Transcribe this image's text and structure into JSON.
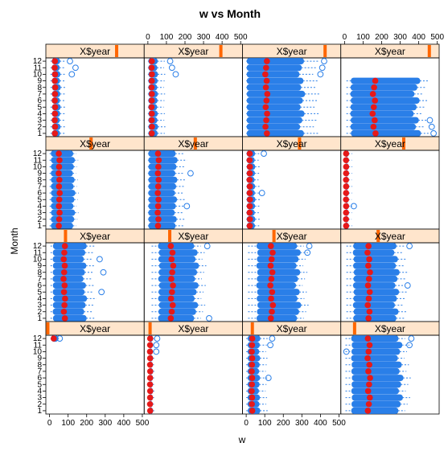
{
  "chart_data": {
    "type": "boxplot",
    "title": "w vs Month",
    "xlabel": "w",
    "ylabel": "Month",
    "x_ticks": [
      0,
      100,
      200,
      300,
      400,
      500
    ],
    "xlim": [
      -20,
      510
    ],
    "y_ticks": [
      1,
      2,
      3,
      4,
      5,
      6,
      7,
      8,
      9,
      10,
      11,
      12
    ],
    "ylim": [
      0.5,
      12.5
    ],
    "layout": {
      "columns": 4,
      "rows": 4
    },
    "strip_label": "X$year",
    "colors": {
      "strip_bg": "#ffe5cc",
      "strip_marker": "#ff6600",
      "box_fill": "#2a7fe8",
      "whisker": "#2a7fe8",
      "outlier": "#2a7fe8",
      "median_dot": "#e61919",
      "axis": "#000000"
    },
    "panels": [
      {
        "row": 1,
        "col": 1,
        "year_marker": 0.72,
        "months": [
          1,
          2,
          3,
          4,
          5,
          6,
          7,
          8,
          9,
          10,
          11,
          12
        ],
        "box": {
          "q1": 15,
          "q3": 55,
          "whisker_low": 5,
          "whisker_high": 85
        },
        "outliers": [
          [
            10,
            120
          ],
          [
            11,
            140
          ],
          [
            12,
            110
          ]
        ]
      },
      {
        "row": 1,
        "col": 2,
        "year_marker": 0.78,
        "months": [
          1,
          2,
          3,
          4,
          5,
          6,
          7,
          8,
          9,
          10,
          11,
          12
        ],
        "box": {
          "q1": 5,
          "q3": 50,
          "whisker_low": 0,
          "whisker_high": 90
        },
        "outliers": [
          [
            10,
            150
          ],
          [
            11,
            130
          ],
          [
            12,
            120
          ]
        ]
      },
      {
        "row": 1,
        "col": 3,
        "year_marker": 0.84,
        "months": [
          1,
          2,
          3,
          4,
          5,
          6,
          7,
          8,
          9,
          10,
          11,
          12
        ],
        "box": {
          "q1": 5,
          "q3": 300,
          "whisker_low": 0,
          "whisker_high": 380
        },
        "outliers": [
          [
            12,
            420
          ],
          [
            11,
            410
          ],
          [
            10,
            400
          ]
        ]
      },
      {
        "row": 1,
        "col": 4,
        "year_marker": 0.9,
        "months": [
          1,
          2,
          3,
          4,
          5,
          6,
          7,
          8,
          9
        ],
        "box": {
          "q1": 35,
          "q3": 390,
          "whisker_low": 10,
          "whisker_high": 440
        },
        "outliers": [
          [
            1,
            480
          ],
          [
            2,
            470
          ],
          [
            3,
            460
          ]
        ]
      },
      {
        "row": 2,
        "col": 1,
        "year_marker": 0.46,
        "months": [
          1,
          2,
          3,
          4,
          5,
          6,
          7,
          8,
          9,
          10,
          11,
          12
        ],
        "box": {
          "q1": 10,
          "q3": 130,
          "whisker_low": 0,
          "whisker_high": 150
        },
        "outliers": [
          [
            12,
            110
          ],
          [
            11,
            100
          ],
          [
            10,
            95
          ]
        ]
      },
      {
        "row": 2,
        "col": 2,
        "year_marker": 0.52,
        "months": [
          1,
          2,
          3,
          4,
          5,
          6,
          7,
          8,
          9,
          10,
          11,
          12
        ],
        "box": {
          "q1": 5,
          "q3": 150,
          "whisker_low": 0,
          "whisker_high": 200
        },
        "outliers": [
          [
            9,
            230
          ],
          [
            4,
            210
          ]
        ]
      },
      {
        "row": 2,
        "col": 3,
        "year_marker": 0.58,
        "months": [
          1,
          2,
          3,
          4,
          5,
          6,
          7,
          8,
          9,
          10,
          11,
          12
        ],
        "box": {
          "q1": 5,
          "q3": 45,
          "whisker_low": 0,
          "whisker_high": 70
        },
        "outliers": [
          [
            12,
            95
          ],
          [
            6,
            85
          ]
        ]
      },
      {
        "row": 2,
        "col": 4,
        "year_marker": 0.64,
        "months": [
          1,
          2,
          3,
          4,
          5,
          6,
          7,
          8,
          9,
          10,
          11,
          12
        ],
        "box": {
          "q1": 2,
          "q3": 20,
          "whisker_low": 0,
          "whisker_high": 40
        },
        "outliers": [
          [
            4,
            50
          ]
        ]
      },
      {
        "row": 3,
        "col": 1,
        "year_marker": 0.2,
        "months": [
          1,
          2,
          3,
          4,
          5,
          6,
          7,
          8,
          9,
          10,
          11,
          12
        ],
        "box": {
          "q1": 20,
          "q3": 190,
          "whisker_low": 5,
          "whisker_high": 240
        },
        "outliers": [
          [
            10,
            270
          ],
          [
            8,
            290
          ],
          [
            5,
            280
          ]
        ]
      },
      {
        "row": 3,
        "col": 2,
        "year_marker": 0.26,
        "months": [
          1,
          2,
          3,
          4,
          5,
          6,
          7,
          8,
          9,
          10,
          11,
          12
        ],
        "box": {
          "q1": 60,
          "q3": 260,
          "whisker_low": 20,
          "whisker_high": 300
        },
        "outliers": [
          [
            12,
            320
          ],
          [
            1,
            330
          ]
        ]
      },
      {
        "row": 3,
        "col": 3,
        "year_marker": 0.32,
        "months": [
          1,
          2,
          3,
          4,
          5,
          6,
          7,
          8,
          9,
          10,
          11,
          12
        ],
        "box": {
          "q1": 60,
          "q3": 280,
          "whisker_low": 10,
          "whisker_high": 320
        },
        "outliers": [
          [
            12,
            340
          ],
          [
            11,
            330
          ]
        ]
      },
      {
        "row": 3,
        "col": 4,
        "year_marker": 0.38,
        "months": [
          1,
          2,
          3,
          4,
          5,
          6,
          7,
          8,
          9,
          10,
          11,
          12
        ],
        "box": {
          "q1": 50,
          "q3": 280,
          "whisker_low": 10,
          "whisker_high": 330
        },
        "outliers": [
          [
            12,
            350
          ],
          [
            6,
            340
          ]
        ]
      },
      {
        "row": 4,
        "col": 1,
        "year_marker": 0.02,
        "months": [
          12
        ],
        "box": {
          "q1": 10,
          "q3": 45,
          "whisker_low": 5,
          "whisker_high": 50
        },
        "outliers": [
          [
            12,
            55
          ]
        ]
      },
      {
        "row": 4,
        "col": 2,
        "year_marker": 0.06,
        "months": [
          1,
          2,
          3,
          4,
          5,
          6,
          7,
          8,
          9,
          10,
          11,
          12
        ],
        "box": {
          "q1": 5,
          "q3": 25,
          "whisker_low": 0,
          "whisker_high": 35
        },
        "outliers": [
          [
            12,
            50
          ],
          [
            11,
            45
          ],
          [
            10,
            45
          ]
        ]
      },
      {
        "row": 4,
        "col": 3,
        "year_marker": 0.1,
        "months": [
          1,
          2,
          3,
          4,
          5,
          6,
          7,
          8,
          9,
          10,
          11,
          12
        ],
        "box": {
          "q1": 10,
          "q3": 70,
          "whisker_low": 0,
          "whisker_high": 110
        },
        "outliers": [
          [
            12,
            140
          ],
          [
            11,
            130
          ],
          [
            6,
            120
          ]
        ]
      },
      {
        "row": 4,
        "col": 4,
        "year_marker": 0.14,
        "months": [
          1,
          2,
          3,
          4,
          5,
          6,
          7,
          8,
          9,
          10,
          11,
          12
        ],
        "box": {
          "q1": 40,
          "q3": 300,
          "whisker_low": 5,
          "whisker_high": 340
        },
        "outliers": [
          [
            10,
            10
          ],
          [
            12,
            360
          ],
          [
            11,
            350
          ]
        ]
      }
    ]
  }
}
